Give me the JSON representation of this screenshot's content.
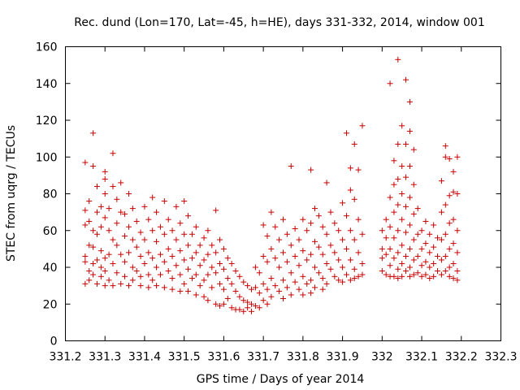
{
  "chart_data": {
    "type": "scatter",
    "title": "Rec. dund (Lon=170, Lat=-45, h=HE), days 331-332, 2014, window 001",
    "xlabel": "GPS time / Days of year 2014",
    "ylabel": "STEC from uqrg / TECUs",
    "xlim": [
      331.2,
      332.3
    ],
    "ylim": [
      0,
      160
    ],
    "xticks": [
      "331.2",
      "331.3",
      "331.4",
      "331.5",
      "331.6",
      "331.7",
      "331.8",
      "331.9",
      "332",
      "332.1",
      "332.2",
      "332.3"
    ],
    "yticks": [
      "0",
      "20",
      "40",
      "60",
      "80",
      "100",
      "120",
      "140",
      "160"
    ],
    "marker": "plus",
    "color": "#c80000",
    "grid": false,
    "legend": "none",
    "points": [
      [
        331.25,
        97
      ],
      [
        331.25,
        71
      ],
      [
        331.25,
        63
      ],
      [
        331.25,
        46
      ],
      [
        331.25,
        43
      ],
      [
        331.25,
        31
      ],
      [
        331.26,
        76
      ],
      [
        331.26,
        65
      ],
      [
        331.26,
        52
      ],
      [
        331.26,
        38
      ],
      [
        331.26,
        33
      ],
      [
        331.27,
        113
      ],
      [
        331.27,
        95
      ],
      [
        331.27,
        60
      ],
      [
        331.27,
        51
      ],
      [
        331.27,
        42
      ],
      [
        331.27,
        36
      ],
      [
        331.28,
        84
      ],
      [
        331.28,
        70
      ],
      [
        331.28,
        58
      ],
      [
        331.28,
        44
      ],
      [
        331.28,
        31
      ],
      [
        331.29,
        73
      ],
      [
        331.29,
        62
      ],
      [
        331.29,
        49
      ],
      [
        331.29,
        40
      ],
      [
        331.29,
        35
      ],
      [
        331.3,
        92
      ],
      [
        331.3,
        88
      ],
      [
        331.3,
        80
      ],
      [
        331.3,
        67
      ],
      [
        331.3,
        45
      ],
      [
        331.3,
        38
      ],
      [
        331.3,
        30
      ],
      [
        331.31,
        72
      ],
      [
        331.31,
        60
      ],
      [
        331.31,
        47
      ],
      [
        331.31,
        33
      ],
      [
        331.32,
        102
      ],
      [
        331.32,
        84
      ],
      [
        331.32,
        55
      ],
      [
        331.32,
        42
      ],
      [
        331.32,
        30
      ],
      [
        331.33,
        77
      ],
      [
        331.33,
        64
      ],
      [
        331.33,
        52
      ],
      [
        331.33,
        37
      ],
      [
        331.34,
        86
      ],
      [
        331.34,
        70
      ],
      [
        331.34,
        47
      ],
      [
        331.34,
        31
      ],
      [
        331.35,
        69
      ],
      [
        331.35,
        57
      ],
      [
        331.35,
        43
      ],
      [
        331.35,
        35
      ],
      [
        331.36,
        80
      ],
      [
        331.36,
        62
      ],
      [
        331.36,
        48
      ],
      [
        331.36,
        30
      ],
      [
        331.37,
        72
      ],
      [
        331.37,
        55
      ],
      [
        331.37,
        40
      ],
      [
        331.37,
        33
      ],
      [
        331.38,
        65
      ],
      [
        331.38,
        51
      ],
      [
        331.38,
        38
      ],
      [
        331.39,
        59
      ],
      [
        331.39,
        46
      ],
      [
        331.39,
        35
      ],
      [
        331.39,
        30
      ],
      [
        331.4,
        73
      ],
      [
        331.4,
        55
      ],
      [
        331.4,
        42
      ],
      [
        331.41,
        66
      ],
      [
        331.41,
        48
      ],
      [
        331.41,
        36
      ],
      [
        331.41,
        29
      ],
      [
        331.42,
        78
      ],
      [
        331.42,
        60
      ],
      [
        331.42,
        45
      ],
      [
        331.42,
        33
      ],
      [
        331.43,
        70
      ],
      [
        331.43,
        54
      ],
      [
        331.43,
        40
      ],
      [
        331.43,
        30
      ],
      [
        331.44,
        62
      ],
      [
        331.44,
        47
      ],
      [
        331.44,
        36
      ],
      [
        331.45,
        76
      ],
      [
        331.45,
        58
      ],
      [
        331.45,
        43
      ],
      [
        331.45,
        29
      ],
      [
        331.46,
        66
      ],
      [
        331.46,
        50
      ],
      [
        331.46,
        38
      ],
      [
        331.47,
        60
      ],
      [
        331.47,
        46
      ],
      [
        331.47,
        34
      ],
      [
        331.47,
        28
      ],
      [
        331.48,
        73
      ],
      [
        331.48,
        55
      ],
      [
        331.48,
        41
      ],
      [
        331.49,
        64
      ],
      [
        331.49,
        49
      ],
      [
        331.49,
        36
      ],
      [
        331.49,
        27
      ],
      [
        331.5,
        76
      ],
      [
        331.5,
        58
      ],
      [
        331.5,
        44
      ],
      [
        331.5,
        31
      ],
      [
        331.51,
        68
      ],
      [
        331.51,
        52
      ],
      [
        331.51,
        39
      ],
      [
        331.51,
        27
      ],
      [
        331.52,
        58
      ],
      [
        331.52,
        45
      ],
      [
        331.52,
        34
      ],
      [
        331.53,
        62
      ],
      [
        331.53,
        48
      ],
      [
        331.53,
        36
      ],
      [
        331.53,
        25
      ],
      [
        331.54,
        52
      ],
      [
        331.54,
        41
      ],
      [
        331.54,
        30
      ],
      [
        331.55,
        56
      ],
      [
        331.55,
        44
      ],
      [
        331.55,
        33
      ],
      [
        331.55,
        24
      ],
      [
        331.56,
        60
      ],
      [
        331.56,
        47
      ],
      [
        331.56,
        36
      ],
      [
        331.56,
        22
      ],
      [
        331.57,
        52
      ],
      [
        331.57,
        40
      ],
      [
        331.57,
        29
      ],
      [
        331.58,
        71
      ],
      [
        331.58,
        48
      ],
      [
        331.58,
        37
      ],
      [
        331.58,
        20
      ],
      [
        331.59,
        55
      ],
      [
        331.59,
        42
      ],
      [
        331.59,
        31
      ],
      [
        331.59,
        19
      ],
      [
        331.6,
        50
      ],
      [
        331.6,
        39
      ],
      [
        331.6,
        28
      ],
      [
        331.6,
        20
      ],
      [
        331.61,
        45
      ],
      [
        331.61,
        34
      ],
      [
        331.61,
        23
      ],
      [
        331.62,
        42
      ],
      [
        331.62,
        31
      ],
      [
        331.62,
        18
      ],
      [
        331.63,
        38
      ],
      [
        331.63,
        27
      ],
      [
        331.63,
        17
      ],
      [
        331.64,
        35
      ],
      [
        331.64,
        24
      ],
      [
        331.64,
        17
      ],
      [
        331.65,
        32
      ],
      [
        331.65,
        22
      ],
      [
        331.65,
        16
      ],
      [
        331.66,
        30
      ],
      [
        331.66,
        21
      ],
      [
        331.66,
        18
      ],
      [
        331.67,
        28
      ],
      [
        331.67,
        20
      ],
      [
        331.67,
        16
      ],
      [
        331.68,
        40
      ],
      [
        331.68,
        29
      ],
      [
        331.68,
        19
      ],
      [
        331.69,
        37
      ],
      [
        331.69,
        26
      ],
      [
        331.69,
        18
      ],
      [
        331.7,
        63
      ],
      [
        331.7,
        46
      ],
      [
        331.7,
        31
      ],
      [
        331.7,
        22
      ],
      [
        331.71,
        57
      ],
      [
        331.71,
        43
      ],
      [
        331.71,
        28
      ],
      [
        331.71,
        20
      ],
      [
        331.72,
        70
      ],
      [
        331.72,
        50
      ],
      [
        331.72,
        34
      ],
      [
        331.72,
        24
      ],
      [
        331.73,
        62
      ],
      [
        331.73,
        45
      ],
      [
        331.73,
        30
      ],
      [
        331.74,
        55
      ],
      [
        331.74,
        40
      ],
      [
        331.74,
        27
      ],
      [
        331.75,
        66
      ],
      [
        331.75,
        48
      ],
      [
        331.75,
        33
      ],
      [
        331.75,
        23
      ],
      [
        331.76,
        58
      ],
      [
        331.76,
        43
      ],
      [
        331.76,
        29
      ],
      [
        331.77,
        95
      ],
      [
        331.77,
        52
      ],
      [
        331.77,
        37
      ],
      [
        331.77,
        25
      ],
      [
        331.78,
        61
      ],
      [
        331.78,
        46
      ],
      [
        331.78,
        32
      ],
      [
        331.79,
        55
      ],
      [
        331.79,
        41
      ],
      [
        331.79,
        28
      ],
      [
        331.8,
        66
      ],
      [
        331.8,
        49
      ],
      [
        331.8,
        35
      ],
      [
        331.8,
        25
      ],
      [
        331.81,
        60
      ],
      [
        331.81,
        44
      ],
      [
        331.81,
        31
      ],
      [
        331.82,
        93
      ],
      [
        331.82,
        64
      ],
      [
        331.82,
        47
      ],
      [
        331.82,
        33
      ],
      [
        331.82,
        26
      ],
      [
        331.83,
        72
      ],
      [
        331.83,
        54
      ],
      [
        331.83,
        40
      ],
      [
        331.83,
        29
      ],
      [
        331.84,
        68
      ],
      [
        331.84,
        51
      ],
      [
        331.84,
        37
      ],
      [
        331.85,
        62
      ],
      [
        331.85,
        47
      ],
      [
        331.85,
        34
      ],
      [
        331.85,
        28
      ],
      [
        331.86,
        86
      ],
      [
        331.86,
        58
      ],
      [
        331.86,
        42
      ],
      [
        331.86,
        31
      ],
      [
        331.87,
        70
      ],
      [
        331.87,
        52
      ],
      [
        331.87,
        39
      ],
      [
        331.88,
        64
      ],
      [
        331.88,
        48
      ],
      [
        331.88,
        35
      ],
      [
        331.89,
        60
      ],
      [
        331.89,
        44
      ],
      [
        331.89,
        33
      ],
      [
        331.9,
        75
      ],
      [
        331.9,
        55
      ],
      [
        331.9,
        40
      ],
      [
        331.9,
        32
      ],
      [
        331.91,
        113
      ],
      [
        331.91,
        68
      ],
      [
        331.91,
        50
      ],
      [
        331.91,
        36
      ],
      [
        331.92,
        94
      ],
      [
        331.92,
        82
      ],
      [
        331.92,
        60
      ],
      [
        331.92,
        44
      ],
      [
        331.92,
        33
      ],
      [
        331.93,
        107
      ],
      [
        331.93,
        77
      ],
      [
        331.93,
        55
      ],
      [
        331.93,
        39
      ],
      [
        331.93,
        34
      ],
      [
        331.94,
        93
      ],
      [
        331.94,
        66
      ],
      [
        331.94,
        48
      ],
      [
        331.94,
        35
      ],
      [
        331.95,
        117
      ],
      [
        331.95,
        58
      ],
      [
        331.95,
        42
      ],
      [
        331.95,
        36
      ],
      [
        332.0,
        60
      ],
      [
        332.0,
        50
      ],
      [
        332.0,
        45
      ],
      [
        332.0,
        38
      ],
      [
        332.01,
        66
      ],
      [
        332.01,
        56
      ],
      [
        332.01,
        47
      ],
      [
        332.01,
        36
      ],
      [
        332.02,
        140
      ],
      [
        332.02,
        78
      ],
      [
        332.02,
        62
      ],
      [
        332.02,
        50
      ],
      [
        332.02,
        41
      ],
      [
        332.02,
        35
      ],
      [
        332.03,
        98
      ],
      [
        332.03,
        85
      ],
      [
        332.03,
        70
      ],
      [
        332.03,
        56
      ],
      [
        332.03,
        45
      ],
      [
        332.03,
        35
      ],
      [
        332.04,
        153
      ],
      [
        332.04,
        107
      ],
      [
        332.04,
        88
      ],
      [
        332.04,
        74
      ],
      [
        332.04,
        60
      ],
      [
        332.04,
        48
      ],
      [
        332.04,
        39
      ],
      [
        332.04,
        34
      ],
      [
        332.05,
        117
      ],
      [
        332.05,
        95
      ],
      [
        332.05,
        80
      ],
      [
        332.05,
        66
      ],
      [
        332.05,
        52
      ],
      [
        332.05,
        42
      ],
      [
        332.05,
        35
      ],
      [
        332.06,
        142
      ],
      [
        332.06,
        107
      ],
      [
        332.06,
        89
      ],
      [
        332.06,
        73
      ],
      [
        332.06,
        59
      ],
      [
        332.06,
        46
      ],
      [
        332.06,
        38
      ],
      [
        332.07,
        130
      ],
      [
        332.07,
        114
      ],
      [
        332.07,
        95
      ],
      [
        332.07,
        78
      ],
      [
        332.07,
        63
      ],
      [
        332.07,
        50
      ],
      [
        332.07,
        40
      ],
      [
        332.07,
        35
      ],
      [
        332.08,
        104
      ],
      [
        332.08,
        85
      ],
      [
        332.08,
        69
      ],
      [
        332.08,
        55
      ],
      [
        332.08,
        44
      ],
      [
        332.08,
        36
      ],
      [
        332.09,
        72
      ],
      [
        332.09,
        58
      ],
      [
        332.09,
        46
      ],
      [
        332.09,
        37
      ],
      [
        332.1,
        60
      ],
      [
        332.1,
        50
      ],
      [
        332.1,
        41
      ],
      [
        332.1,
        35
      ],
      [
        332.11,
        65
      ],
      [
        332.11,
        53
      ],
      [
        332.11,
        43
      ],
      [
        332.11,
        36
      ],
      [
        332.12,
        58
      ],
      [
        332.12,
        48
      ],
      [
        332.12,
        40
      ],
      [
        332.12,
        34
      ],
      [
        332.13,
        63
      ],
      [
        332.13,
        51
      ],
      [
        332.13,
        42
      ],
      [
        332.13,
        35
      ],
      [
        332.14,
        56
      ],
      [
        332.14,
        46
      ],
      [
        332.14,
        38
      ],
      [
        332.15,
        87
      ],
      [
        332.15,
        70
      ],
      [
        332.15,
        55
      ],
      [
        332.15,
        44
      ],
      [
        332.15,
        36
      ],
      [
        332.16,
        106
      ],
      [
        332.16,
        100
      ],
      [
        332.16,
        74
      ],
      [
        332.16,
        58
      ],
      [
        332.16,
        46
      ],
      [
        332.16,
        38
      ],
      [
        332.17,
        99
      ],
      [
        332.17,
        79
      ],
      [
        332.17,
        64
      ],
      [
        332.17,
        50
      ],
      [
        332.17,
        40
      ],
      [
        332.17,
        35
      ],
      [
        332.18,
        92
      ],
      [
        332.18,
        81
      ],
      [
        332.18,
        66
      ],
      [
        332.18,
        53
      ],
      [
        332.18,
        42
      ],
      [
        332.18,
        34
      ],
      [
        332.19,
        100
      ],
      [
        332.19,
        80
      ],
      [
        332.19,
        60
      ],
      [
        332.19,
        48
      ],
      [
        332.19,
        38
      ],
      [
        332.19,
        33
      ]
    ]
  }
}
